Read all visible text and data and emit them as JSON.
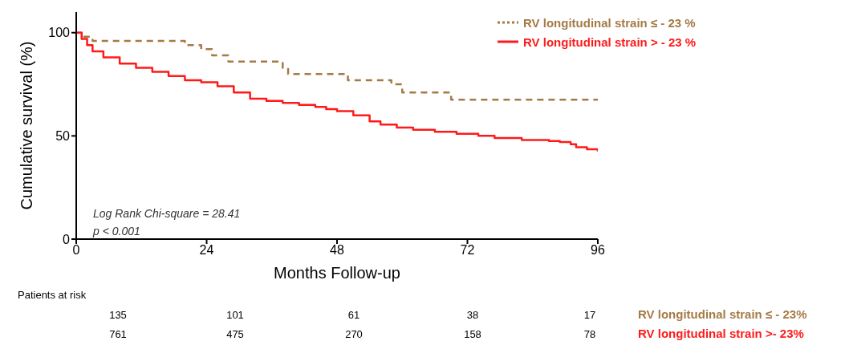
{
  "chart_data": {
    "type": "step",
    "xlabel": "Months Follow-up",
    "ylabel": "Cumulative survival (%)",
    "xlim": [
      0,
      96
    ],
    "xticks": [
      0,
      24,
      48,
      72,
      96
    ],
    "ylim": [
      0,
      110
    ],
    "yticks": [
      0,
      50,
      100
    ],
    "legend": "top right",
    "series": [
      {
        "name": "RV longitudinal strain ≤ - 23 %",
        "color": "#a57a45",
        "line_style": "dashed",
        "x": [
          0,
          1,
          3,
          17,
          20,
          23,
          25,
          28,
          35,
          38,
          39,
          47,
          50,
          58,
          60,
          69,
          96
        ],
        "values": [
          100,
          98,
          96,
          96,
          94,
          92,
          89,
          86,
          86,
          83,
          80,
          80,
          77,
          75,
          71,
          67.5,
          67.5
        ]
      },
      {
        "name": "RV longitudinal strain > - 23 %",
        "color": "#ff1a1a",
        "line_style": "solid",
        "x": [
          0,
          1,
          2,
          3,
          5,
          8,
          11,
          14,
          17,
          20,
          23,
          26,
          29,
          32,
          35,
          38,
          41,
          44,
          46,
          48,
          51,
          54,
          56,
          59,
          62,
          66,
          70,
          74,
          77,
          82,
          87,
          89,
          91,
          92,
          94,
          96
        ],
        "values": [
          100,
          97,
          94,
          91,
          88,
          85,
          83,
          81,
          79,
          77,
          76,
          74,
          71,
          68,
          67,
          66,
          65,
          64,
          63,
          62,
          60,
          57,
          55.5,
          54,
          53,
          52,
          51,
          50,
          49,
          48,
          47.5,
          47,
          46,
          44.5,
          43.5,
          42.5
        ]
      }
    ],
    "annotations": [
      "Log Rank Chi-square = 28.41",
      "p < 0.001",
      "Patients at risk",
      "135",
      "101",
      "61",
      "38",
      "17",
      "RV longitudinal strain ≤ - 23%",
      "761",
      "475",
      "270",
      "158",
      "78",
      "RV longitudinal strain >- 23%"
    ]
  }
}
